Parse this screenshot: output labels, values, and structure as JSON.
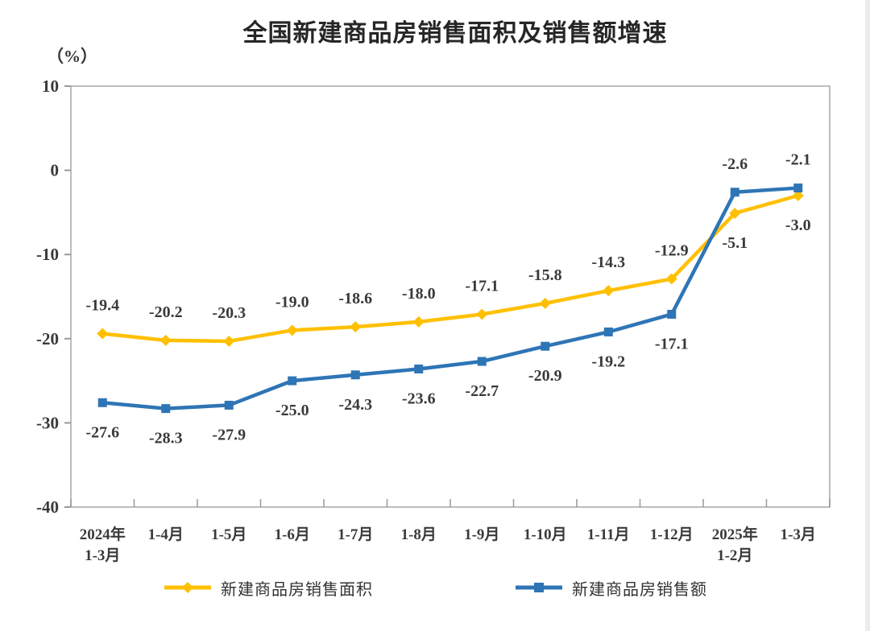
{
  "title": "全国新建商品房销售面积及销售额增速",
  "y_axis_unit": "（%）",
  "chart_data": {
    "type": "line",
    "title": "全国新建商品房销售面积及销售额增速",
    "categories": [
      [
        "2024年",
        "1-3月"
      ],
      [
        "1-4月"
      ],
      [
        "1-5月"
      ],
      [
        "1-6月"
      ],
      [
        "1-7月"
      ],
      [
        "1-8月"
      ],
      [
        "1-9月"
      ],
      [
        "1-10月"
      ],
      [
        "1-11月"
      ],
      [
        "1-12月"
      ],
      [
        "2025年",
        "1-2月"
      ],
      [
        "1-3月"
      ]
    ],
    "series": [
      {
        "name": "新建商品房销售面积",
        "color": "#FFC000",
        "marker": "diamond",
        "values": [
          -19.4,
          -20.2,
          -20.3,
          -19.0,
          -18.6,
          -18.0,
          -17.1,
          -15.8,
          -14.3,
          -12.9,
          -5.1,
          -3.0
        ],
        "label_side": [
          "above",
          "above",
          "above",
          "above",
          "above",
          "above",
          "above",
          "above",
          "above",
          "above",
          "below",
          "below"
        ]
      },
      {
        "name": "新建商品房销售额",
        "color": "#2E75B6",
        "marker": "square",
        "values": [
          -27.6,
          -28.3,
          -27.9,
          -25.0,
          -24.3,
          -23.6,
          -22.7,
          -20.9,
          -19.2,
          -17.1,
          -2.6,
          -2.1
        ],
        "label_side": [
          "below",
          "below",
          "below",
          "below",
          "below",
          "below",
          "below",
          "below",
          "below",
          "below",
          "above",
          "above"
        ]
      }
    ],
    "ylim": [
      -40,
      10
    ],
    "y_ticks": [
      10,
      0,
      -10,
      -20,
      -30,
      -40
    ],
    "grid": false,
    "legend_position": "bottom",
    "label_color": "#3A3A3A",
    "axis_color": "#BDBDBD",
    "tick_color": "#999999",
    "value_decimals": 1
  }
}
